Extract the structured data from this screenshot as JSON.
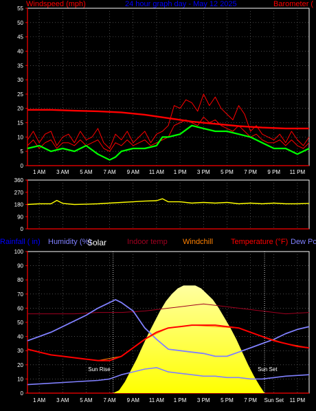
{
  "header": {
    "windspeed": "Windspeed (mph)",
    "title": "24 hour graph day - May 12 2025",
    "barometer": "Barometer (",
    "rainfall": "Rainfall ( in)",
    "humidity": "Humidity (%)",
    "solar": "Solar",
    "indoor": "Indoor temp",
    "windchill": "Windchill",
    "temperature": "Temperature (°F)",
    "dew": "Dew Po"
  },
  "colors": {
    "windspeed": "#ff0000",
    "gust": "#ff0000",
    "avg": "#00ff00",
    "barometer": "#ff0000",
    "direction": "#ffff00",
    "humidity": "#8080ff",
    "solar": "#ffff00",
    "indoor": "#a00020",
    "windchill": "#ff8000",
    "temperature": "#ff0000",
    "dew": "#8080ff",
    "title": "#0000ff",
    "axis": "#ff0000",
    "rainfall": "#0000ff"
  },
  "annotations": {
    "sunrise": "Sun Rise",
    "sunset": "Sun Set"
  },
  "chart_data": [
    {
      "type": "line",
      "title": "24 hour graph day - May 12 2025",
      "ylabel": "Windspeed (mph)",
      "ylim": [
        0,
        55
      ],
      "yticks": [
        0,
        5,
        10,
        15,
        20,
        25,
        30,
        35,
        40,
        45,
        50,
        55
      ],
      "xticks": [
        "1 AM",
        "3 AM",
        "5 AM",
        "7 AM",
        "9 AM",
        "11 AM",
        "1 PM",
        "3 PM",
        "5 PM",
        "7 PM",
        "9 PM",
        "11 PM"
      ],
      "xlim_hours": [
        0,
        24
      ],
      "grid": true,
      "series": [
        {
          "key": "gust",
          "x": [
            0,
            0.5,
            1,
            1.5,
            2,
            2.5,
            3,
            3.5,
            4,
            4.5,
            5,
            5.5,
            6,
            6.5,
            7,
            7.5,
            8,
            8.5,
            9,
            9.5,
            10,
            10.5,
            11,
            11.5,
            12,
            12.5,
            13,
            13.5,
            14,
            14.5,
            15,
            15.5,
            16,
            16.5,
            17,
            17.5,
            18,
            18.5,
            19,
            19.5,
            20,
            20.5,
            21,
            21.5,
            22,
            22.5,
            23,
            23.5,
            24
          ],
          "values": [
            9,
            12,
            8,
            11,
            12,
            7,
            10,
            11,
            8,
            12,
            9,
            10,
            13,
            8,
            6,
            11,
            9,
            12,
            8,
            10,
            12,
            8,
            11,
            12,
            14,
            21,
            20,
            23,
            22,
            19,
            25,
            21,
            24,
            20,
            18,
            16,
            21,
            18,
            12,
            14,
            11,
            10,
            9,
            11,
            8,
            12,
            9,
            7,
            10
          ]
        },
        {
          "key": "windspeed",
          "x": [
            0,
            0.5,
            1,
            1.5,
            2,
            2.5,
            3,
            3.5,
            4,
            4.5,
            5,
            5.5,
            6,
            6.5,
            7,
            7.5,
            8,
            8.5,
            9,
            9.5,
            10,
            10.5,
            11,
            11.5,
            12,
            12.5,
            13,
            13.5,
            14,
            14.5,
            15,
            15.5,
            16,
            16.5,
            17,
            17.5,
            18,
            18.5,
            19,
            19.5,
            20,
            20.5,
            21,
            21.5,
            22,
            22.5,
            23,
            23.5,
            24
          ],
          "values": [
            7,
            9,
            6,
            8,
            9,
            6,
            8,
            8,
            7,
            9,
            7,
            8,
            9,
            6,
            5,
            8,
            7,
            9,
            7,
            8,
            9,
            7,
            8,
            9,
            10,
            14,
            15,
            16,
            15,
            14,
            17,
            15,
            16,
            14,
            13,
            12,
            14,
            12,
            10,
            11,
            9,
            8,
            8,
            9,
            7,
            9,
            7,
            6,
            8
          ]
        },
        {
          "key": "avg",
          "x": [
            0,
            1,
            2,
            3,
            4,
            5,
            6,
            7,
            7.5,
            8,
            9,
            10,
            11,
            11.5,
            12,
            13,
            14,
            15,
            16,
            17,
            18,
            19,
            20,
            21,
            22,
            23,
            24
          ],
          "values": [
            6,
            7,
            5,
            6,
            5,
            7,
            4,
            2,
            3,
            5,
            6,
            6,
            7,
            10,
            10,
            11,
            14,
            13,
            12,
            12,
            11,
            10,
            8,
            6,
            6,
            4,
            6
          ]
        },
        {
          "key": "barometer",
          "x": [
            0,
            2,
            4,
            6,
            8,
            10,
            12,
            14,
            16,
            18,
            20,
            22,
            24
          ],
          "values": [
            19.5,
            19.5,
            19.2,
            19,
            18.6,
            17.8,
            16.6,
            15.4,
            14.6,
            13.8,
            13.3,
            13,
            13
          ]
        }
      ]
    },
    {
      "type": "line",
      "ylabel": "Wind direction",
      "ylim": [
        0,
        360
      ],
      "yticks": [
        0,
        90,
        180,
        270,
        360
      ],
      "xlim_hours": [
        0,
        24
      ],
      "grid": true,
      "series": [
        {
          "key": "direction",
          "x": [
            0,
            1,
            2,
            2.5,
            3,
            4,
            5,
            6,
            7,
            8,
            9,
            10,
            11,
            11.5,
            12,
            13,
            14,
            15,
            16,
            17,
            18,
            19,
            20,
            21,
            22,
            23,
            24
          ],
          "values": [
            180,
            185,
            185,
            210,
            188,
            180,
            182,
            185,
            190,
            195,
            200,
            205,
            208,
            222,
            200,
            200,
            190,
            195,
            190,
            195,
            185,
            190,
            185,
            190,
            185,
            185,
            188
          ]
        }
      ]
    },
    {
      "type": "area",
      "ylabel": "Humidity (%)",
      "ylim": [
        0,
        100
      ],
      "yticks": [
        0,
        10,
        20,
        30,
        40,
        50,
        60,
        70,
        80,
        90,
        100
      ],
      "xticks": [
        "1 AM",
        "3 AM",
        "5 AM",
        "7 AM",
        "9 AM",
        "11 AM",
        "1 PM",
        "3 PM",
        "5 PM",
        "7 PM",
        "Sun Set",
        "11 PM"
      ],
      "xlim_hours": [
        0,
        24
      ],
      "grid": true,
      "series": [
        {
          "key": "solar",
          "x": [
            7.3,
            7.8,
            8.3,
            8.8,
            9.3,
            9.8,
            10.3,
            10.8,
            11.3,
            11.8,
            12.3,
            12.8,
            13.3,
            13.8,
            14.3,
            14.8,
            15.3,
            15.8,
            16.3,
            16.8,
            17.3,
            17.8,
            18.3,
            18.8,
            19.3,
            19.8,
            20.2
          ],
          "values": [
            0,
            2,
            8,
            16,
            24,
            33,
            42,
            50,
            58,
            65,
            70,
            74,
            76,
            76,
            76,
            74,
            70,
            66,
            60,
            53,
            46,
            38,
            29,
            20,
            12,
            5,
            0
          ]
        },
        {
          "key": "indoor",
          "x": [
            0,
            2,
            4,
            6,
            8,
            10,
            12,
            14,
            15,
            16,
            18,
            20,
            22,
            24
          ],
          "values": [
            56,
            56,
            56,
            57,
            57,
            58,
            60,
            62,
            63,
            62,
            60,
            58,
            56,
            57
          ]
        },
        {
          "key": "humidity",
          "x": [
            0,
            1,
            2,
            3,
            4,
            5,
            6,
            7,
            7.5,
            8,
            9,
            10,
            11,
            12,
            13,
            14,
            15,
            16,
            17,
            18,
            19,
            20,
            21,
            22,
            23,
            24
          ],
          "values": [
            37,
            40,
            43,
            47,
            51,
            55,
            60,
            64,
            66,
            64,
            58,
            46,
            38,
            31,
            30,
            29,
            28,
            26,
            26,
            29,
            32,
            35,
            38,
            42,
            45,
            47
          ]
        },
        {
          "key": "temperature",
          "x": [
            0,
            1,
            2,
            3,
            4,
            5,
            6,
            7,
            8,
            9,
            10,
            11,
            12,
            13,
            14,
            15,
            16,
            17,
            18,
            19,
            20,
            21,
            22,
            23,
            24
          ],
          "values": [
            31,
            29,
            27,
            26,
            25,
            24,
            23,
            23,
            26,
            32,
            38,
            43,
            46,
            47,
            48,
            48,
            48,
            47,
            46,
            43,
            40,
            37,
            35,
            33,
            32
          ]
        },
        {
          "key": "windchill",
          "x": [
            0,
            2,
            4,
            6,
            8,
            10,
            12,
            14,
            16,
            18,
            20,
            22,
            24
          ],
          "values": [
            31,
            27,
            25,
            23,
            26,
            38,
            46,
            48,
            47,
            46,
            40,
            35,
            32
          ]
        },
        {
          "key": "dew",
          "x": [
            0,
            2,
            4,
            6,
            7,
            8,
            9,
            10,
            11,
            12,
            13,
            14,
            15,
            16,
            17,
            18,
            19,
            20,
            22,
            24
          ],
          "values": [
            6,
            7,
            8,
            9,
            10,
            13,
            15,
            17,
            18,
            15,
            14,
            13,
            12,
            12,
            11,
            11,
            10,
            10,
            12,
            13
          ]
        }
      ]
    }
  ]
}
